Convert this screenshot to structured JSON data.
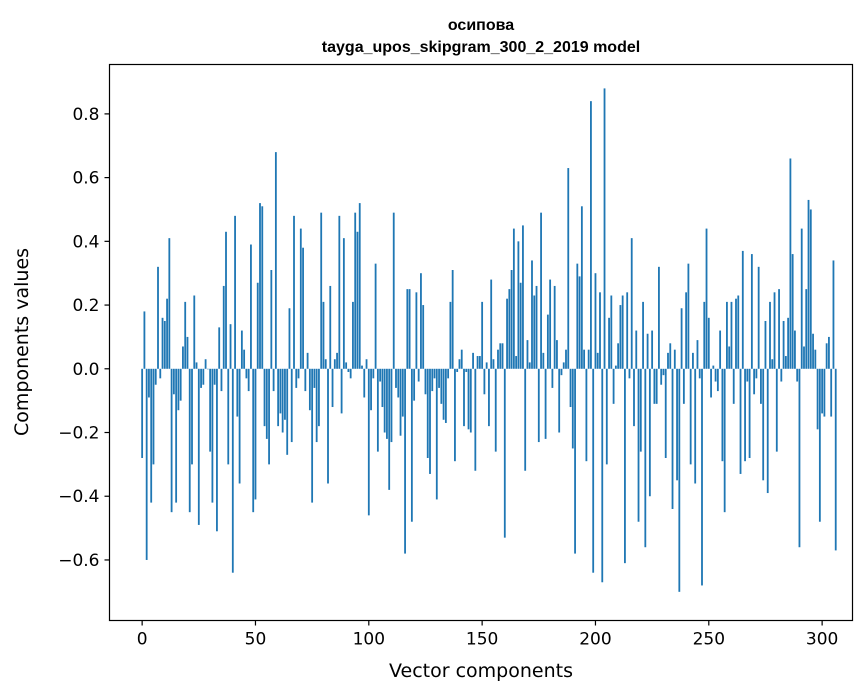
{
  "chart_data": {
    "type": "bar",
    "title_line1": "осипова",
    "title_line2": "tayga_upos_skipgram_300_2_2019 model",
    "xlabel": "Vector components",
    "ylabel": "Components values",
    "xlim": [
      -14.4,
      313.4
    ],
    "ylim": [
      -0.79,
      0.955
    ],
    "xticks": [
      0,
      50,
      100,
      150,
      200,
      250,
      300
    ],
    "yticks": [
      -0.6,
      -0.4,
      -0.2,
      0.0,
      0.2,
      0.4,
      0.6,
      0.8
    ],
    "ytick_labels": [
      "−0.6",
      "−0.4",
      "−0.2",
      "0.0",
      "0.2",
      "0.4",
      "0.6",
      "0.8"
    ],
    "bar_color": "#1f77b4",
    "values": [
      -0.28,
      0.18,
      -0.6,
      -0.09,
      -0.42,
      -0.3,
      -0.05,
      0.32,
      -0.03,
      0.16,
      0.15,
      0.22,
      0.41,
      -0.45,
      -0.08,
      -0.42,
      -0.13,
      -0.1,
      0.07,
      0.21,
      0.1,
      -0.45,
      -0.3,
      0.23,
      0.02,
      -0.49,
      -0.06,
      -0.05,
      0.03,
      0.0,
      -0.26,
      -0.42,
      -0.05,
      -0.51,
      0.13,
      -0.07,
      0.26,
      0.43,
      -0.3,
      0.14,
      -0.64,
      0.48,
      -0.15,
      -0.36,
      0.12,
      0.06,
      -0.03,
      -0.07,
      0.39,
      -0.45,
      -0.41,
      0.27,
      0.52,
      0.51,
      -0.18,
      -0.22,
      -0.3,
      0.31,
      -0.07,
      0.68,
      -0.18,
      -0.14,
      -0.2,
      -0.16,
      -0.27,
      0.19,
      -0.23,
      0.48,
      -0.06,
      -0.03,
      0.44,
      0.38,
      -0.07,
      0.05,
      -0.13,
      -0.42,
      -0.06,
      -0.23,
      -0.18,
      0.49,
      0.21,
      0.03,
      -0.36,
      0.26,
      -0.12,
      0.03,
      0.05,
      0.48,
      -0.14,
      0.41,
      0.02,
      -0.01,
      -0.03,
      0.21,
      0.49,
      0.43,
      0.52,
      0.01,
      -0.09,
      0.03,
      -0.46,
      -0.13,
      -0.03,
      0.33,
      -0.26,
      -0.04,
      -0.12,
      -0.2,
      -0.22,
      -0.38,
      -0.23,
      0.49,
      -0.06,
      -0.09,
      -0.21,
      -0.15,
      -0.58,
      0.25,
      0.25,
      -0.48,
      -0.1,
      0.24,
      -0.04,
      0.3,
      0.2,
      -0.08,
      -0.28,
      -0.33,
      -0.07,
      -0.03,
      -0.41,
      -0.06,
      -0.11,
      -0.16,
      -0.17,
      -0.03,
      0.21,
      0.31,
      -0.29,
      -0.01,
      0.03,
      0.06,
      -0.18,
      -0.01,
      -0.19,
      -0.2,
      0.05,
      -0.32,
      0.04,
      0.04,
      0.21,
      -0.08,
      0.02,
      -0.18,
      0.28,
      0.03,
      -0.26,
      0.06,
      0.08,
      0.08,
      -0.53,
      0.22,
      0.25,
      0.31,
      0.44,
      0.04,
      0.4,
      0.27,
      0.45,
      -0.32,
      0.09,
      0.02,
      0.34,
      0.23,
      0.26,
      -0.23,
      0.49,
      0.05,
      -0.22,
      0.17,
      0.28,
      -0.06,
      0.26,
      0.09,
      -0.2,
      -0.02,
      0.02,
      0.06,
      0.63,
      -0.12,
      -0.25,
      -0.58,
      0.33,
      0.29,
      0.51,
      0.06,
      -0.29,
      0.06,
      0.84,
      -0.64,
      0.3,
      0.05,
      0.24,
      -0.67,
      0.88,
      -0.3,
      0.16,
      0.23,
      -0.11,
      0.01,
      0.08,
      0.2,
      0.23,
      -0.61,
      0.24,
      -0.03,
      0.41,
      -0.18,
      0.12,
      -0.48,
      -0.26,
      0.21,
      -0.56,
      0.11,
      -0.4,
      0.12,
      -0.11,
      -0.11,
      0.32,
      -0.05,
      -0.02,
      -0.28,
      0.05,
      0.08,
      -0.44,
      0.06,
      -0.35,
      -0.7,
      0.19,
      -0.11,
      0.24,
      0.33,
      -0.3,
      0.05,
      -0.36,
      0.09,
      -0.03,
      -0.68,
      0.21,
      0.44,
      0.16,
      -0.09,
      0.01,
      -0.04,
      -0.07,
      0.12,
      -0.29,
      -0.45,
      0.21,
      0.07,
      0.21,
      -0.11,
      0.22,
      0.23,
      -0.33,
      0.37,
      -0.29,
      -0.04,
      -0.28,
      0.36,
      -0.08,
      -0.03,
      0.32,
      -0.11,
      -0.35,
      0.15,
      -0.39,
      0.21,
      0.03,
      0.24,
      -0.26,
      0.25,
      -0.04,
      0.15,
      0.04,
      0.16,
      0.66,
      0.36,
      0.12,
      -0.04,
      -0.56,
      0.44,
      0.07,
      0.25,
      0.53,
      0.5,
      0.11,
      0.06,
      -0.19,
      -0.48,
      -0.14,
      -0.15,
      0.08,
      0.1,
      -0.15,
      0.34,
      -0.57
    ]
  }
}
